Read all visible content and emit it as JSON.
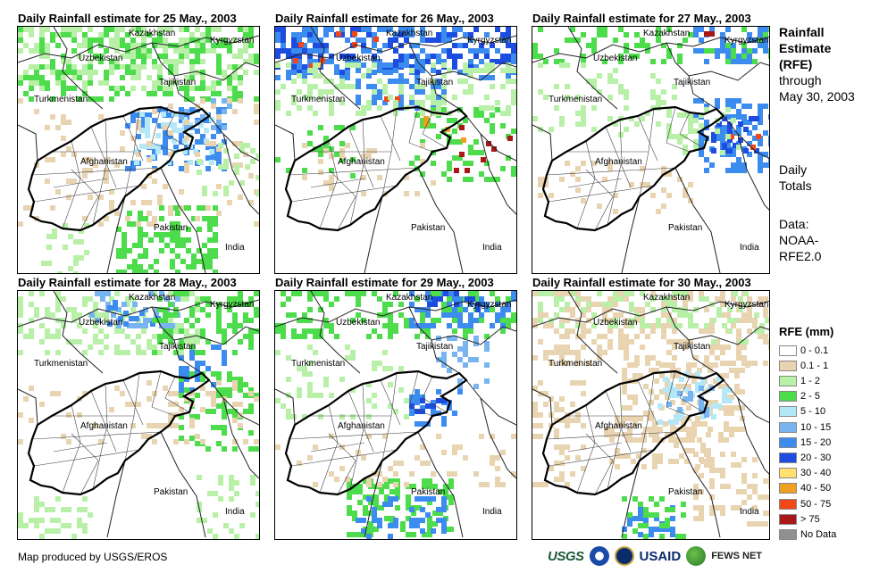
{
  "panels": [
    {
      "title": "Daily Rainfall estimate for 25 May., 2003",
      "day": 25
    },
    {
      "title": "Daily Rainfall estimate for 26 May., 2003",
      "day": 26
    },
    {
      "title": "Daily Rainfall estimate for 27 May., 2003",
      "day": 27
    },
    {
      "title": "Daily Rainfall estimate for 28 May., 2003",
      "day": 28
    },
    {
      "title": "Daily Rainfall estimate for 29 May., 2003",
      "day": 29
    },
    {
      "title": "Daily Rainfall estimate for 30 May., 2003",
      "day": 30
    }
  ],
  "map_labels": {
    "kazakhstan": "Kazakhstan",
    "kyrgyzstan": "Kyrgyzstan",
    "uzbekistan": "Uzbekistan",
    "tajikistan": "Tajikistan",
    "turkmenistan": "Turkmenistan",
    "afghanistan": "Afghanistan",
    "pakistan": "Pakistan",
    "india": "India"
  },
  "side": {
    "title_line1": "Rainfall",
    "title_line2": "Estimate",
    "title_line3": "(RFE)",
    "through": "through",
    "date": "May 30, 2003",
    "daily1": "Daily",
    "daily2": "Totals",
    "data1": "Data:",
    "data2": "NOAA-",
    "data3": "RFE2.0"
  },
  "legend": {
    "title": "RFE (mm)",
    "items": [
      {
        "label": "0 - 0.1",
        "color": "#ffffff"
      },
      {
        "label": "0.1 - 1",
        "color": "#e8d4b0"
      },
      {
        "label": "1 - 2",
        "color": "#b8f0a8"
      },
      {
        "label": "2 - 5",
        "color": "#4cdc4c"
      },
      {
        "label": "5 - 10",
        "color": "#b4e8f8"
      },
      {
        "label": "10 - 15",
        "color": "#78b4f0"
      },
      {
        "label": "15 - 20",
        "color": "#3c8cf0"
      },
      {
        "label": "20 - 30",
        "color": "#1c4ce0"
      },
      {
        "label": "30 - 40",
        "color": "#ffe070"
      },
      {
        "label": "40 - 50",
        "color": "#f0a020"
      },
      {
        "label": "50 - 75",
        "color": "#f04818"
      },
      {
        "label": "> 75",
        "color": "#a81818"
      },
      {
        "label": "No Data",
        "color": "#909090"
      }
    ]
  },
  "credit": "Map produced by USGS/EROS",
  "logos": {
    "usgs": "USGS",
    "usaid": "USAID",
    "fews": "FEWS NET"
  }
}
